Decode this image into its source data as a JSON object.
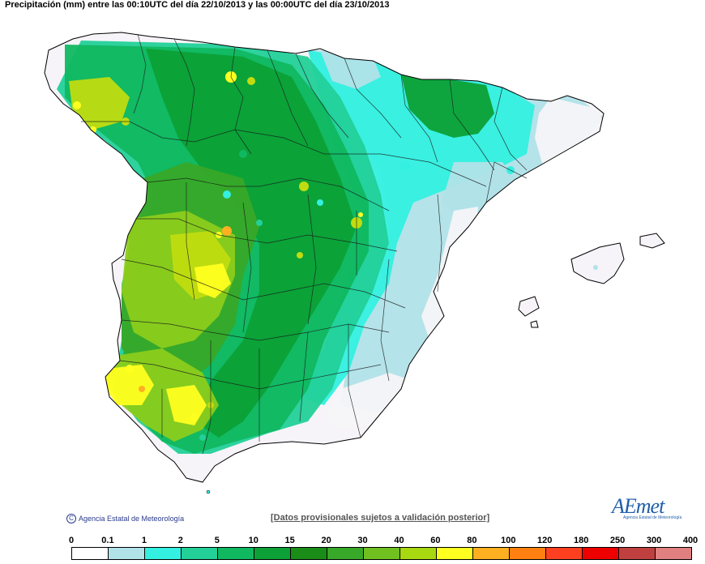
{
  "header": {
    "title": "Precipitación (mm) entre las 00:10UTC del día 22/10/2013 y las 00:00UTC del día 23/10/2013"
  },
  "footer": {
    "copyright": "Agencia Estatal de Meteorología",
    "provisional_note": "[Datos provisionales sujetos a validación posterior]",
    "logo_text": "AEmet",
    "logo_sub": "Agencia Estatal de Meteorología"
  },
  "legend": {
    "labels": [
      "0",
      "0.1",
      "1",
      "2",
      "5",
      "10",
      "15",
      "20",
      "30",
      "40",
      "60",
      "80",
      "100",
      "120",
      "180",
      "250",
      "300",
      "400"
    ],
    "colors": [
      "#ffffff",
      "#b0e2e8",
      "#33f0e0",
      "#22d098",
      "#10b860",
      "#0ca036",
      "#1a8c18",
      "#38a828",
      "#70c020",
      "#a8d810",
      "#ffff20",
      "#ffb020",
      "#ff8010",
      "#ff4020",
      "#ee0000",
      "#c04040",
      "#e08080",
      "#f4c4c4"
    ]
  },
  "map": {
    "colors": {
      "white": "#f6f4f8",
      "light_blue": "#b0e2e8",
      "cyan": "#33f0e0",
      "teal": "#22d098",
      "green": "#10b860",
      "dark_green": "#0ca036",
      "mid_green": "#38a828",
      "yellow_green": "#8ccc1c",
      "lime": "#c0dc10",
      "yellow": "#ffff20",
      "orange": "#ffb020",
      "border": "#000000"
    }
  }
}
